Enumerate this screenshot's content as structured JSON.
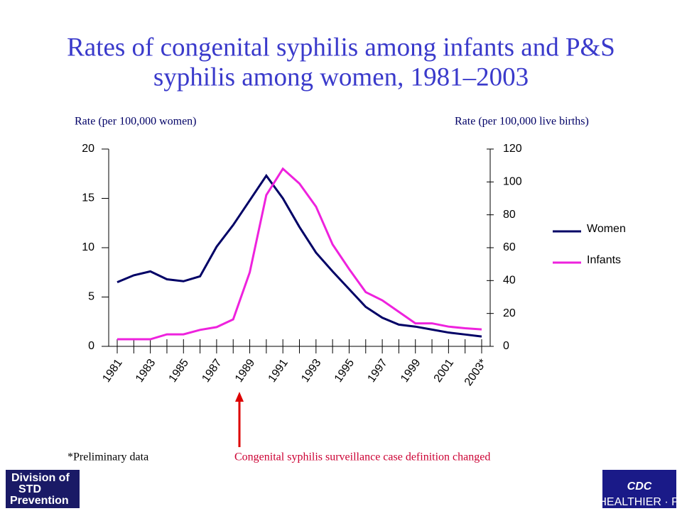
{
  "chart_data": {
    "type": "line",
    "title": "Rates of congenital syphilis among infants and P&S syphilis among women, 1981–2003",
    "y_label": "Rate (per 100,000 women)",
    "y2_label": "Rate (per 100,000 live births)",
    "categories": [
      "1981",
      null,
      "1983",
      null,
      "1985",
      null,
      "1987",
      null,
      "1989",
      null,
      "1991",
      null,
      "1993",
      null,
      "1995",
      null,
      "1997",
      null,
      "1999",
      null,
      "2001",
      null,
      "2003*"
    ],
    "series": [
      {
        "name": "Women",
        "color": "#000066",
        "axis": "y",
        "values": [
          6.5,
          7.2,
          7.6,
          6.8,
          6.6,
          7.1,
          10.1,
          12.3,
          14.8,
          17.3,
          15.0,
          12.1,
          9.5,
          7.6,
          5.8,
          4.0,
          2.9,
          2.2,
          2.0,
          1.7,
          1.4,
          1.2,
          1.0
        ]
      },
      {
        "name": "Infants",
        "color": "#ee22dd",
        "axis": "y2",
        "values": [
          4.3,
          4.3,
          4.3,
          7.3,
          7.3,
          10.0,
          11.7,
          16.4,
          45,
          92,
          108,
          99,
          85,
          62,
          47,
          33,
          28,
          21,
          14,
          14,
          12,
          11,
          10.3
        ]
      }
    ],
    "ylim": [
      0,
      20
    ],
    "yticks": [
      0,
      5,
      10,
      15,
      20
    ],
    "y2lim": [
      0,
      120
    ],
    "y2ticks": [
      0,
      20,
      40,
      60,
      80,
      100,
      120
    ],
    "legend": "right",
    "annotations": [
      "*Preliminary data",
      "Congenital syphilis surveillance case definition changed"
    ]
  },
  "logo_left": [
    "Division of",
    "STD",
    "Prevention"
  ],
  "logo_right": {
    "title": "CDC",
    "tagline": "SAFER · HEALTHIER · PEOPLE™"
  }
}
